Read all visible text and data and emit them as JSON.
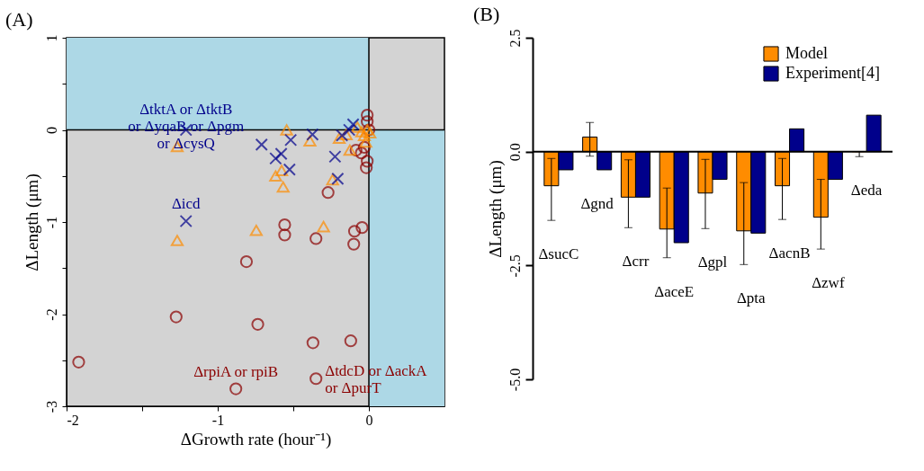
{
  "chart_data": [
    {
      "type": "scatter",
      "title": "(A)",
      "xlabel": "ΔGrowth rate (hour⁻¹)",
      "ylabel": "ΔLength (μm)",
      "xlim": [
        -2,
        0.5
      ],
      "ylim": [
        -3,
        1
      ],
      "xticks": [
        -2,
        {
          "value": -1.5,
          "label": null
        },
        -1,
        {
          "value": -0.5,
          "label": null
        },
        0
      ],
      "yticks": [
        -3,
        {
          "value": -2.5,
          "label": null
        },
        -2,
        {
          "value": -1.5,
          "label": null
        },
        -1,
        {
          "value": -0.5,
          "label": null
        },
        0,
        {
          "value": 0.5,
          "label": null
        },
        1
      ],
      "grid": false,
      "legend": false,
      "bands": [
        {
          "axis": "y",
          "from": 0,
          "to": 1,
          "color": "#add8e6"
        },
        {
          "axis": "x",
          "from": 0,
          "to": 0.5,
          "color": "#add8e6"
        }
      ],
      "ref_lines": [
        {
          "axis": "x",
          "value": 0,
          "color": "#000000"
        },
        {
          "axis": "y",
          "value": 0,
          "color": "#000000"
        }
      ],
      "series": [
        {
          "color": "#8b0000",
          "marker": "circle",
          "x": [
            -1.92,
            -1.275,
            -0.735,
            -0.81,
            -0.557,
            -0.557,
            -0.35,
            -0.27,
            -0.37,
            -0.12,
            -0.35,
            -0.88,
            -0.095,
            -0.045,
            -0.1,
            -0.017,
            -0.011,
            -0.011,
            -0.011,
            -0.03,
            -0.05,
            -0.085,
            0.0
          ],
          "values": [
            -2.52,
            -2.03,
            -2.11,
            -1.43,
            -1.03,
            -1.14,
            -1.18,
            -0.68,
            -2.31,
            -2.29,
            -2.7,
            -2.81,
            -1.1,
            -1.06,
            -1.24,
            -0.41,
            -0.34,
            0.16,
            0.09,
            -0.19,
            -0.25,
            -0.22,
            0.0
          ]
        },
        {
          "color": "#ff8c00",
          "marker": "triangle",
          "x": [
            -1.268,
            -1.268,
            -0.745,
            -0.544,
            -0.577,
            -0.617,
            -0.567,
            -0.39,
            -0.3,
            -0.24,
            -0.196,
            -0.126,
            -0.15,
            -0.076,
            -0.01,
            -0.03,
            0.007,
            -0.02,
            -0.048
          ],
          "values": [
            -0.18,
            -1.2,
            -1.09,
            0.0,
            -0.44,
            -0.5,
            -0.62,
            -0.12,
            -1.05,
            -0.54,
            -0.09,
            -0.22,
            -0.05,
            0.03,
            0.0,
            -0.06,
            -0.03,
            -0.13,
            -0.02
          ]
        },
        {
          "color": "#00008b",
          "marker": "cross",
          "x": [
            -1.21,
            -1.21,
            -0.71,
            -0.617,
            -0.58,
            -0.525,
            -0.517,
            -0.373,
            -0.224,
            -0.206,
            -0.178,
            -0.13,
            -0.104
          ],
          "values": [
            0.0,
            -0.99,
            -0.16,
            -0.31,
            -0.26,
            -0.43,
            -0.11,
            -0.05,
            -0.29,
            -0.53,
            -0.06,
            0.0,
            0.06
          ]
        }
      ],
      "annotations": [
        {
          "text": "ΔtktA or ΔtktB\nor ΔyqaB or Δpgm\nor ΔcysQ",
          "x": -1.21,
          "y": 0.0
        },
        {
          "text": "Δicd",
          "x": -1.21,
          "y": -0.99
        },
        {
          "text": "ΔrpiA or rpiB",
          "x": -0.88,
          "y": -2.81
        },
        {
          "text": "ΔtdcD or ΔackA\nor ΔpurT",
          "x": -0.35,
          "y": -2.7
        }
      ]
    },
    {
      "type": "bar",
      "title": "(B)",
      "ylabel": "ΔLength (μm)",
      "categories": [
        "ΔsucC",
        "Δgnd",
        "Δcrr",
        "ΔaceE",
        "Δgpl",
        "Δpta",
        "ΔacnB",
        "Δzwf",
        "Δeda"
      ],
      "ylim": [
        -5,
        2.5
      ],
      "yticks": [
        {
          "value": -5,
          "label": "-5.0"
        },
        {
          "value": -2.5,
          "label": "-2.5"
        },
        {
          "value": 0,
          "label": "0.0"
        },
        {
          "value": 2.5,
          "label": "2.5"
        }
      ],
      "legend": "top right",
      "grid": false,
      "ref_lines": [
        {
          "axis": "y",
          "value": 0,
          "color": "#000000"
        }
      ],
      "series": [
        {
          "name": "Model",
          "color": "#ff8c00",
          "values": [
            -0.75,
            0.32,
            -1.0,
            -1.7,
            -0.91,
            -1.74,
            -0.75,
            -1.44,
            0.0
          ],
          "errors": [
            [
              -1.51,
              -0.15
            ],
            [
              -0.1,
              0.64
            ],
            [
              -1.67,
              -0.18
            ],
            [
              -2.33,
              -0.8
            ],
            [
              -1.69,
              -0.17
            ],
            [
              -2.48,
              -0.68
            ],
            [
              -1.49,
              -0.15
            ],
            [
              -2.14,
              -0.61
            ],
            [
              -0.11,
              0.0
            ]
          ]
        },
        {
          "name": "Experiment[4]",
          "color": "#00008b",
          "values": [
            -0.4,
            -0.4,
            -1.0,
            -2.0,
            -0.61,
            -1.79,
            0.5,
            -0.61,
            0.8
          ]
        }
      ]
    }
  ]
}
